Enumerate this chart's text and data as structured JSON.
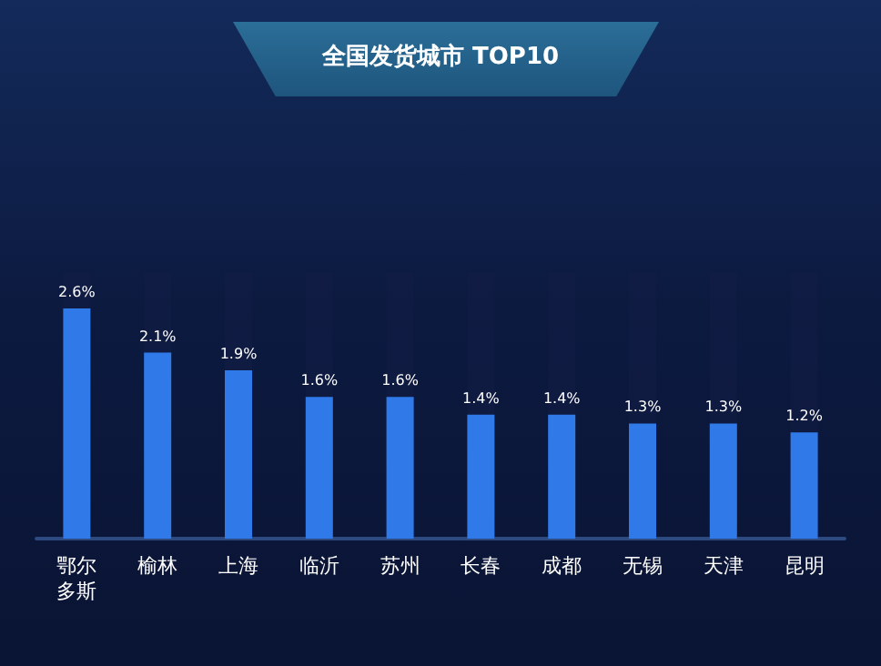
{
  "chart_data": {
    "type": "bar",
    "title": "全国发货城市 TOP10",
    "categories": [
      "鄂尔多斯",
      "榆林",
      "上海",
      "临沂",
      "苏州",
      "长春",
      "成都",
      "无锡",
      "天津",
      "昆明"
    ],
    "values": [
      2.6,
      2.1,
      1.9,
      1.6,
      1.6,
      1.4,
      1.4,
      1.3,
      1.3,
      1.2
    ],
    "value_labels": [
      "2.6%",
      "2.1%",
      "1.9%",
      "1.6%",
      "1.6%",
      "1.4%",
      "1.4%",
      "1.3%",
      "1.3%",
      "1.2%"
    ],
    "color": "#2f7ae8"
  }
}
